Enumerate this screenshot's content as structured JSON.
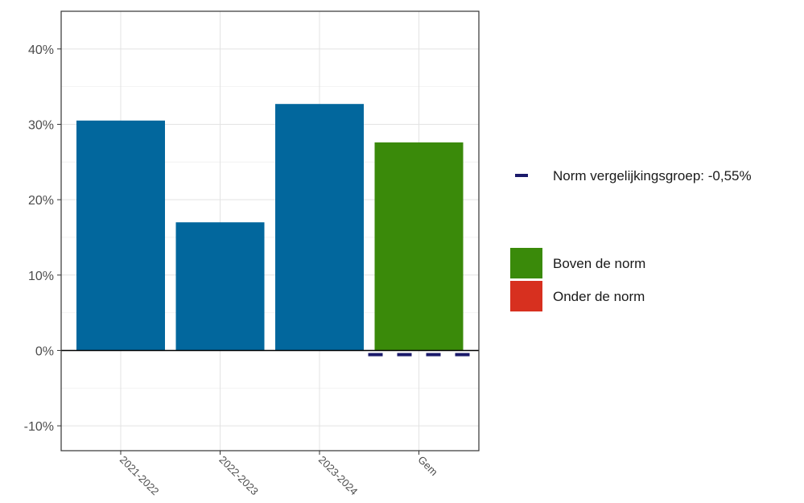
{
  "chart_data": {
    "type": "bar",
    "categories": [
      "2021-2022",
      "2022-2023",
      "2023-2024",
      "Gem"
    ],
    "values": [
      30.5,
      17.0,
      32.7,
      27.6
    ],
    "bar_colors": [
      "#02679d",
      "#02679d",
      "#02679d",
      "#3a8a0a"
    ],
    "ylim": [
      -13.3,
      45.0
    ],
    "yticks": [
      -10,
      0,
      10,
      20,
      30,
      40
    ],
    "ytick_labels": [
      "-10%",
      "0%",
      "10%",
      "20%",
      "30%",
      "40%"
    ],
    "norm_value": -0.55,
    "norm_color": "#1b1a6b",
    "grid": true,
    "legend_position": "right",
    "legend": {
      "norm_label": "Norm vergelijkingsgroep: -0,55%",
      "items": [
        {
          "label": "Boven de norm",
          "color": "#3a8a0a"
        },
        {
          "label": "Onder de norm",
          "color": "#d7301f"
        }
      ]
    }
  }
}
